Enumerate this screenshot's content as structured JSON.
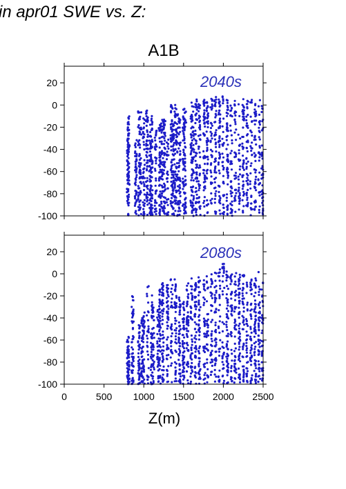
{
  "page_title": "in apr01 SWE vs. Z:",
  "chart_data": {
    "type": "scatter",
    "title": "A1B",
    "xlabel": "Z(m)",
    "ylabel": "",
    "xlim": [
      0,
      2500
    ],
    "ylim": [
      -100,
      35
    ],
    "x_ticks": [
      "0",
      "500",
      "1000",
      "1500",
      "2000",
      "2500"
    ],
    "y_ticks": [
      "20",
      "0",
      "-20",
      "-40",
      "-60",
      "-80",
      "-100"
    ],
    "marker_color": "#1c1cc8",
    "grid": false,
    "panels": [
      {
        "label": "2040s",
        "description": "dense vertical point clusters from ~800 m to 2500 m spanning -100 to ~10",
        "clusters": [
          [
            800,
            -100,
            -15
          ],
          [
            810,
            -100,
            -10
          ],
          [
            900,
            -100,
            -30
          ],
          [
            940,
            -100,
            -5
          ],
          [
            960,
            -100,
            -3
          ],
          [
            1000,
            -100,
            -10
          ],
          [
            1040,
            -100,
            -4
          ],
          [
            1080,
            -100,
            -15
          ],
          [
            1100,
            -100,
            -8
          ],
          [
            1150,
            -100,
            -20
          ],
          [
            1200,
            -100,
            -15
          ],
          [
            1230,
            -100,
            -10
          ],
          [
            1260,
            -100,
            -10
          ],
          [
            1300,
            -100,
            -30
          ],
          [
            1350,
            -100,
            0
          ],
          [
            1370,
            -100,
            -10
          ],
          [
            1400,
            -100,
            2
          ],
          [
            1430,
            -100,
            -5
          ],
          [
            1450,
            -100,
            -10
          ],
          [
            1500,
            -100,
            2
          ],
          [
            1520,
            -100,
            -5
          ],
          [
            1600,
            -100,
            3
          ],
          [
            1620,
            -100,
            0
          ],
          [
            1660,
            -100,
            5
          ],
          [
            1700,
            -100,
            2
          ],
          [
            1760,
            -100,
            5
          ],
          [
            1800,
            -100,
            5
          ],
          [
            1850,
            -100,
            8
          ],
          [
            1900,
            -100,
            8
          ],
          [
            1950,
            -100,
            6
          ],
          [
            2000,
            -100,
            10
          ],
          [
            2050,
            -100,
            5
          ],
          [
            2100,
            -100,
            5
          ],
          [
            2150,
            -100,
            5
          ],
          [
            2200,
            -100,
            6
          ],
          [
            2250,
            -100,
            6
          ],
          [
            2300,
            -100,
            8
          ],
          [
            2350,
            -100,
            5
          ],
          [
            2400,
            -100,
            4
          ],
          [
            2450,
            -100,
            5
          ],
          [
            2490,
            -100,
            4
          ]
        ]
      },
      {
        "label": "2080s",
        "description": "dense vertical point clusters from ~800 m to 2500 m spanning -100 to ~12",
        "clusters": [
          [
            800,
            -100,
            -55
          ],
          [
            810,
            -100,
            -65
          ],
          [
            860,
            -100,
            -20
          ],
          [
            940,
            -100,
            -45
          ],
          [
            980,
            -100,
            -40
          ],
          [
            1000,
            -100,
            -35
          ],
          [
            1050,
            -100,
            -10
          ],
          [
            1100,
            -100,
            -15
          ],
          [
            1120,
            -100,
            -25
          ],
          [
            1180,
            -100,
            -30
          ],
          [
            1200,
            -100,
            -10
          ],
          [
            1240,
            -100,
            -5
          ],
          [
            1300,
            -100,
            -10
          ],
          [
            1350,
            -100,
            -3
          ],
          [
            1400,
            -100,
            -5
          ],
          [
            1450,
            -100,
            -20
          ],
          [
            1500,
            -100,
            -25
          ],
          [
            1550,
            -100,
            -5
          ],
          [
            1600,
            -100,
            -3
          ],
          [
            1650,
            -100,
            -8
          ],
          [
            1700,
            -100,
            -3
          ],
          [
            1760,
            -100,
            -5
          ],
          [
            1800,
            -100,
            0
          ],
          [
            1850,
            -100,
            2
          ],
          [
            1900,
            -100,
            2
          ],
          [
            1950,
            -100,
            5
          ],
          [
            2000,
            -100,
            12
          ],
          [
            2050,
            -100,
            3
          ],
          [
            2100,
            -100,
            0
          ],
          [
            2150,
            -100,
            2
          ],
          [
            2200,
            -100,
            0
          ],
          [
            2250,
            -100,
            0
          ],
          [
            2300,
            -100,
            -2
          ],
          [
            2350,
            -100,
            0
          ],
          [
            2400,
            -100,
            -3
          ],
          [
            2450,
            -100,
            2
          ],
          [
            2490,
            -100,
            -5
          ]
        ]
      }
    ]
  }
}
